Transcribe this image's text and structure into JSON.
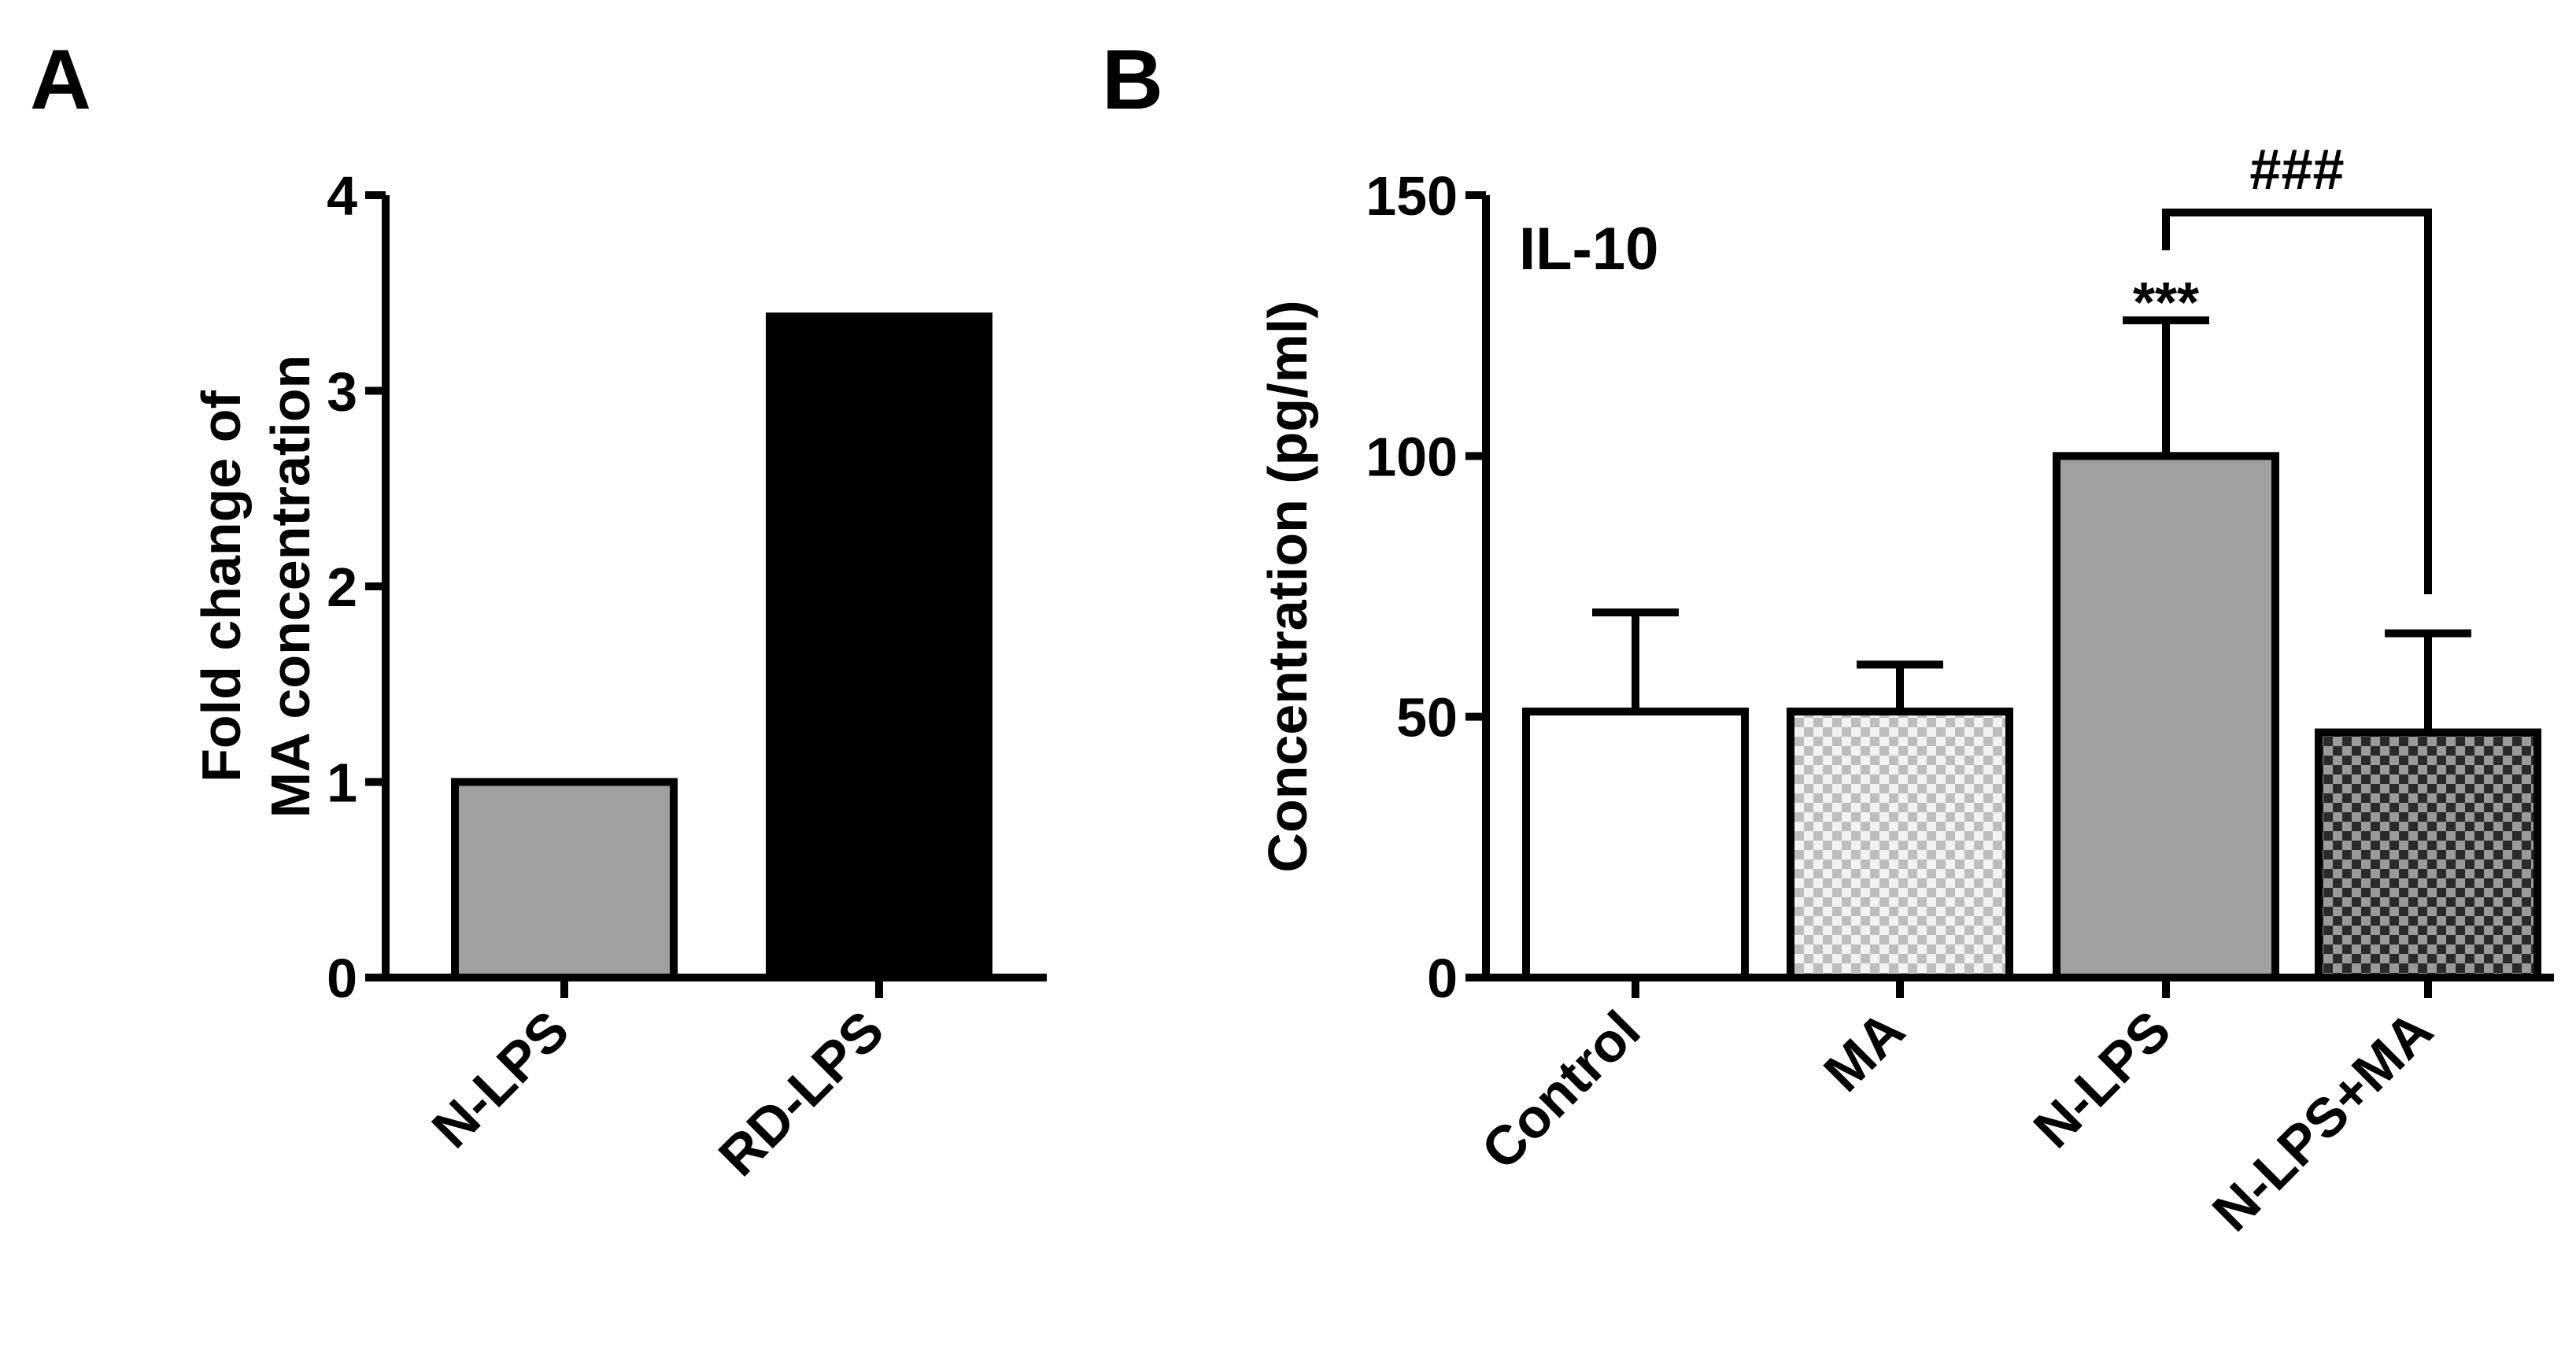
{
  "panels": {
    "A": {
      "label": "A"
    },
    "B": {
      "label": "B",
      "annotation": "IL-10"
    }
  },
  "chart_data": [
    {
      "type": "bar",
      "panel": "A",
      "categories": [
        "N-LPS",
        "RD-LPS"
      ],
      "values": [
        1.0,
        3.38
      ],
      "ylabel_lines": [
        "Fold change of",
        "MA concentration"
      ],
      "ylim": [
        0,
        4
      ],
      "yticks": [
        0,
        1,
        2,
        3,
        4
      ],
      "colors": [
        "#a0a0a2",
        "#000000"
      ],
      "patterns": [
        "solid",
        "solid"
      ]
    },
    {
      "type": "bar",
      "panel": "B",
      "categories": [
        "Control",
        "MA",
        "N-LPS",
        "N-LPS+MA"
      ],
      "values": [
        51,
        51,
        100,
        47
      ],
      "errors": [
        19,
        9,
        26,
        19
      ],
      "ylabel": "Concentration (pg/ml)",
      "ylim": [
        0,
        150
      ],
      "yticks": [
        0,
        50,
        100,
        150
      ],
      "colors": [
        "#ffffff",
        "#d4d4d4",
        "#a0a0a2",
        "#5a5a5a"
      ],
      "patterns": [
        "solid",
        "checker-light",
        "solid",
        "checker-dark"
      ],
      "annotations": [
        {
          "text": "***",
          "category": "N-LPS"
        },
        {
          "text": "###",
          "between": [
            "N-LPS",
            "N-LPS+MA"
          ]
        }
      ]
    }
  ]
}
